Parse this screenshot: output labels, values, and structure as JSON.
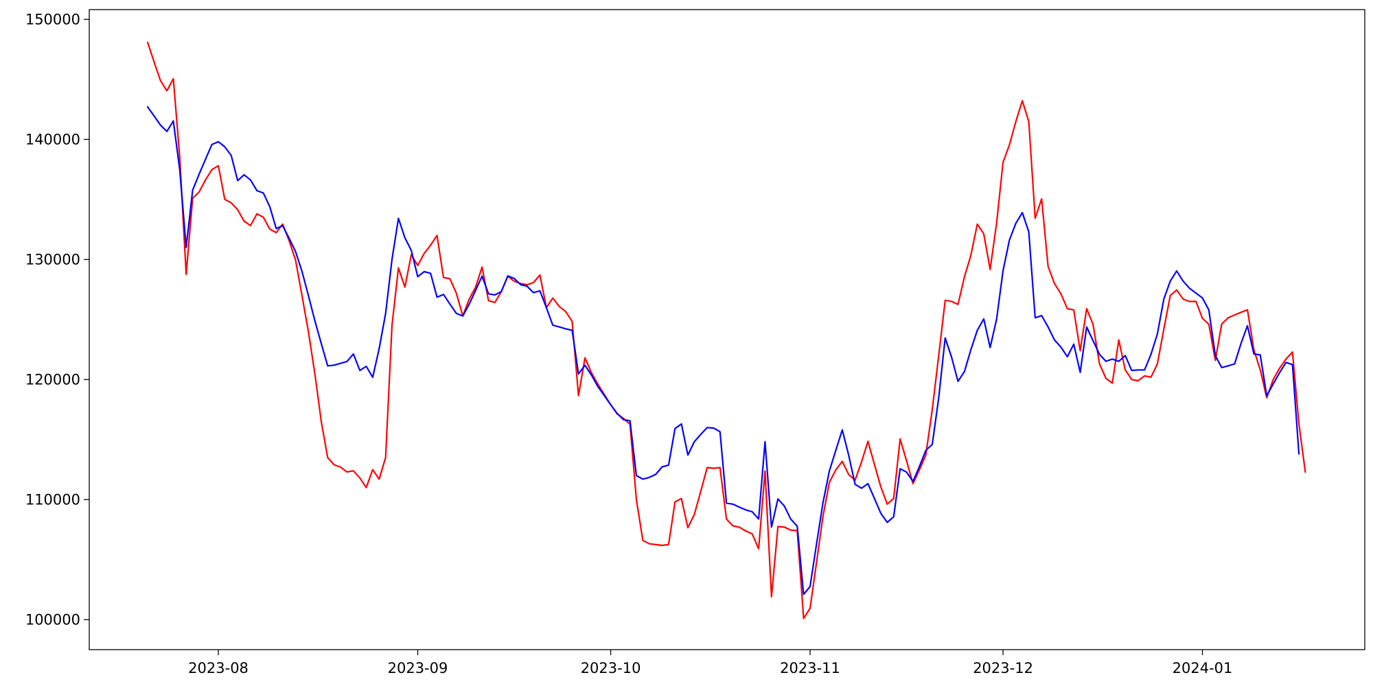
{
  "chart_data": {
    "type": "line",
    "title": "",
    "xlabel": "",
    "ylabel": "",
    "grid": false,
    "legend_position": "none",
    "background_color": "#ffffff",
    "axis_color": "#000000",
    "tick_label_font_px": 21,
    "x_start_date": "2023-07-21",
    "frequency": "daily",
    "xlim_dates": [
      "2023-07-12",
      "2024-01-26"
    ],
    "ylim": [
      97500,
      150820
    ],
    "y_ticks": [
      {
        "label": "100000",
        "value": 100000
      },
      {
        "label": "110000",
        "value": 110000
      },
      {
        "label": "120000",
        "value": 120000
      },
      {
        "label": "130000",
        "value": 130000
      },
      {
        "label": "140000",
        "value": 140000
      },
      {
        "label": "150000",
        "value": 150000
      }
    ],
    "x_ticks": [
      {
        "label": "2023-08",
        "date": "2023-08-01"
      },
      {
        "label": "2023-09",
        "date": "2023-09-01"
      },
      {
        "label": "2023-10",
        "date": "2023-10-01"
      },
      {
        "label": "2023-11",
        "date": "2023-11-01"
      },
      {
        "label": "2023-12",
        "date": "2023-12-01"
      },
      {
        "label": "2024-01",
        "date": "2024-01-01"
      }
    ],
    "series": [
      {
        "name": "red-series",
        "color": "#ff0000",
        "line_width": 2.2,
        "end_date": "2024-01-17",
        "values": [
          148090,
          146470,
          144910,
          144050,
          145060,
          138530,
          128760,
          135100,
          135620,
          136630,
          137490,
          137810,
          135010,
          134720,
          134150,
          133200,
          132820,
          133810,
          133520,
          132530,
          132240,
          132950,
          131580,
          129960,
          127000,
          124000,
          120500,
          116500,
          113500,
          112900,
          112700,
          112300,
          112400,
          111800,
          111000,
          112500,
          111700,
          113500,
          124500,
          129300,
          127700,
          130400,
          129500,
          130500,
          131200,
          132000,
          128500,
          128400,
          127200,
          125300,
          126700,
          127700,
          129370,
          126570,
          126420,
          127330,
          128610,
          128190,
          128000,
          127890,
          128080,
          128700,
          125990,
          126790,
          126090,
          125660,
          124850,
          118660,
          121810,
          120570,
          119620,
          118760,
          117900,
          117140,
          116760,
          116280,
          110000,
          106600,
          106320,
          106250,
          106190,
          106250,
          109810,
          110090,
          107660,
          108760,
          110670,
          112670,
          112610,
          112670,
          108380,
          107810,
          107710,
          107390,
          107140,
          105900,
          112380,
          101900,
          107760,
          107710,
          107460,
          107420,
          100100,
          100950,
          104760,
          108570,
          111430,
          112480,
          113180,
          112090,
          111620,
          113140,
          114860,
          112950,
          111050,
          109620,
          110100,
          115050,
          113240,
          111330,
          112480,
          113710,
          117500,
          122000,
          126600,
          126510,
          126260,
          128560,
          130340,
          132950,
          132130,
          129170,
          133020,
          138100,
          139550,
          141500,
          143230,
          141480,
          133430,
          135050,
          129430,
          128000,
          127140,
          125900,
          125800,
          122400,
          125900,
          124600,
          121300,
          120100,
          119700,
          123300,
          120800,
          120000,
          119900,
          120300,
          120200,
          121300,
          124200,
          127000,
          127460,
          126700,
          126500,
          126510,
          125100,
          124600,
          121600,
          124630,
          125140,
          125380,
          125600,
          125810,
          122480,
          120800,
          118480,
          120000,
          120950,
          121710,
          122290,
          116300,
          112290
        ]
      },
      {
        "name": "blue-series",
        "color": "#0000ff",
        "line_width": 2.2,
        "end_date": "2024-01-16",
        "values": [
          142720,
          141960,
          141200,
          140670,
          141540,
          137490,
          131010,
          135770,
          137100,
          138340,
          139580,
          139810,
          139390,
          138670,
          136570,
          137060,
          136630,
          135730,
          135540,
          134400,
          132570,
          132820,
          131770,
          130670,
          129010,
          127010,
          124910,
          123000,
          121140,
          121200,
          121350,
          121500,
          122130,
          120760,
          121100,
          120190,
          122570,
          125500,
          130000,
          133430,
          131810,
          130760,
          128570,
          128990,
          128850,
          126860,
          127090,
          126290,
          125520,
          125290,
          126280,
          127430,
          128610,
          127140,
          127050,
          127330,
          128630,
          128420,
          127900,
          127770,
          127240,
          127390,
          125990,
          124530,
          124380,
          124230,
          124100,
          120470,
          121190,
          120380,
          119430,
          118670,
          117900,
          117180,
          116660,
          116570,
          112000,
          111710,
          111850,
          112100,
          112730,
          112870,
          115920,
          116300,
          113710,
          114820,
          115430,
          116000,
          115960,
          115660,
          109710,
          109620,
          109370,
          109140,
          108990,
          108380,
          114820,
          107710,
          110060,
          109470,
          108370,
          107790,
          102100,
          102760,
          106290,
          109710,
          112380,
          114100,
          115810,
          113710,
          111270,
          110950,
          111330,
          110100,
          108860,
          108100,
          108570,
          112570,
          112290,
          111520,
          112760,
          114100,
          114600,
          118480,
          123470,
          121870,
          119850,
          120670,
          122480,
          124100,
          125050,
          122670,
          125020,
          129070,
          131620,
          133020,
          133900,
          132300,
          125140,
          125330,
          124380,
          123300,
          122700,
          121900,
          122950,
          120600,
          124380,
          123240,
          122100,
          121520,
          121710,
          121520,
          122000,
          120760,
          120800,
          120800,
          122100,
          123800,
          126700,
          128200,
          129050,
          128200,
          127600,
          127200,
          126800,
          125800,
          122000,
          121000,
          121140,
          121300,
          123000,
          124480,
          122130,
          122050,
          118650,
          119620,
          120570,
          121430,
          121240,
          113800
        ]
      }
    ]
  }
}
